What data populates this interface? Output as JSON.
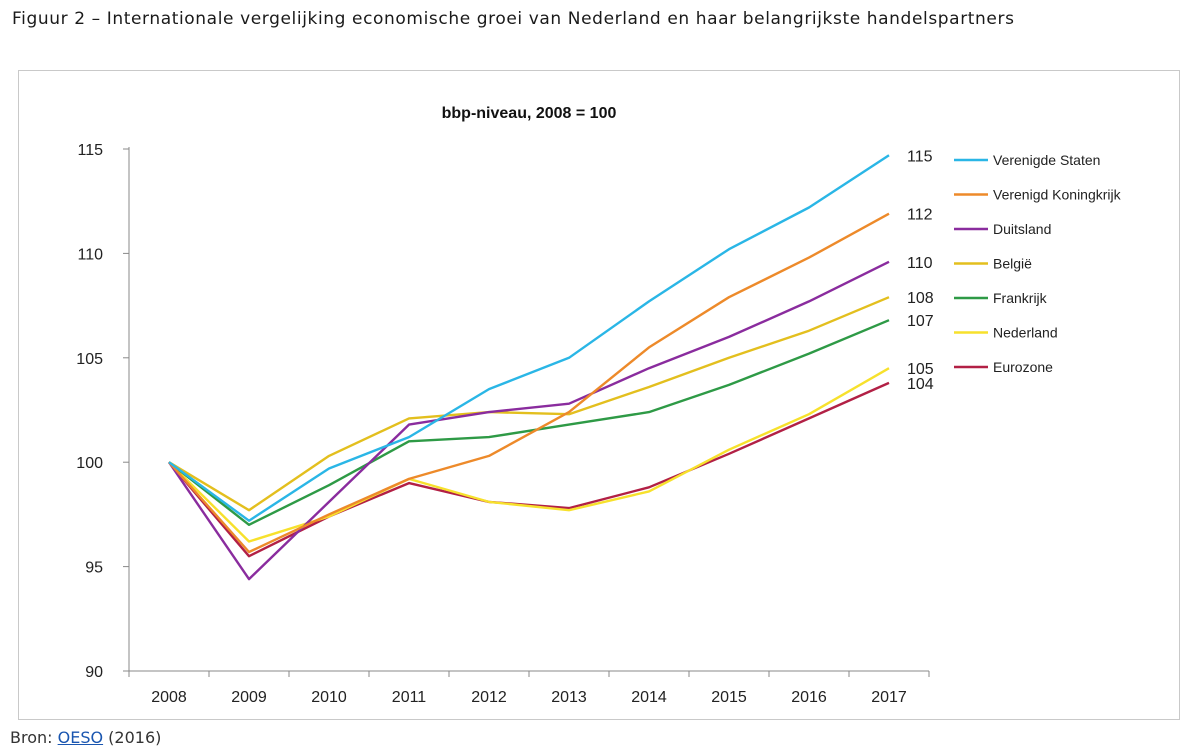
{
  "figure": {
    "title": "Figuur 2 – Internationale vergelijking economische groei van Nederland en haar belangrijkste handelspartners"
  },
  "source": {
    "prefix": "Bron:",
    "link": "OESO",
    "suffix": "(2016)",
    "link_color": "#1a56b0"
  },
  "chart_data": {
    "type": "line",
    "title": "bbp-niveau, 2008 = 100",
    "xlabel": "",
    "ylabel": "",
    "x": [
      "2008",
      "2009",
      "2010",
      "2011",
      "2012",
      "2013",
      "2014",
      "2015",
      "2016",
      "2017"
    ],
    "ylim": [
      90,
      115
    ],
    "yticks": [
      "90",
      "95",
      "100",
      "105",
      "110",
      "115"
    ],
    "grid": false,
    "legend_position": "right",
    "series": [
      {
        "name": "Verenigde Staten",
        "color": "#2ab6e6",
        "end_label": "115",
        "values": [
          100,
          97.2,
          99.7,
          101.2,
          103.5,
          105.0,
          107.7,
          110.2,
          112.2,
          114.7
        ]
      },
      {
        "name": "Verenigd Koningkrijk",
        "color": "#ed8a2a",
        "end_label": "112",
        "values": [
          100,
          95.7,
          97.5,
          99.2,
          100.3,
          102.4,
          105.5,
          107.9,
          109.8,
          111.9
        ]
      },
      {
        "name": "Duitsland",
        "color": "#8a2c9e",
        "end_label": "110",
        "values": [
          100,
          94.4,
          98.1,
          101.8,
          102.4,
          102.8,
          104.5,
          106.0,
          107.7,
          109.6
        ]
      },
      {
        "name": "België",
        "color": "#e3bf1e",
        "end_label": "108",
        "values": [
          100,
          97.7,
          100.3,
          102.1,
          102.4,
          102.3,
          103.6,
          105.0,
          106.3,
          107.9
        ]
      },
      {
        "name": "Frankrijk",
        "color": "#2e9a46",
        "end_label": "107",
        "values": [
          100,
          97.0,
          98.9,
          101.0,
          101.2,
          101.8,
          102.4,
          103.7,
          105.2,
          106.8
        ]
      },
      {
        "name": "Nederland",
        "color": "#f7e12c",
        "end_label": "105",
        "values": [
          100,
          96.2,
          97.4,
          99.2,
          98.1,
          97.7,
          98.6,
          100.6,
          102.3,
          104.5
        ]
      },
      {
        "name": "Eurozone",
        "color": "#b22045",
        "end_label": "104",
        "values": [
          100,
          95.5,
          97.4,
          99.0,
          98.1,
          97.8,
          98.8,
          100.4,
          102.1,
          103.8
        ]
      }
    ]
  }
}
